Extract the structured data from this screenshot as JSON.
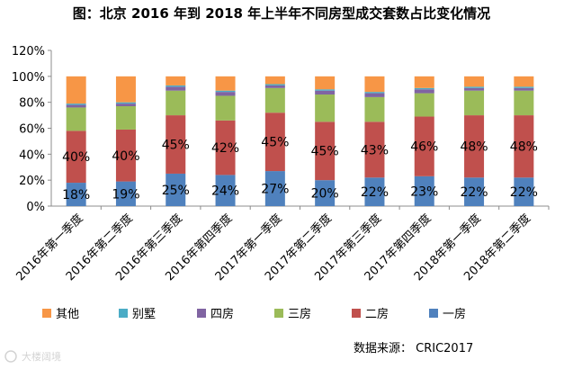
{
  "chart_data": {
    "type": "bar",
    "stacked": true,
    "title": "图：北京 2016 年到 2018 年上半年不同房型成交套数占比变化情况",
    "categories": [
      "2016年第一季度",
      "2016年第二季度",
      "2016年第三季度",
      "2016年第四季度",
      "2017年第一季度",
      "2017年第二季度",
      "2017年第三季度",
      "2017年第四季度",
      "2018年第一季度",
      "2018年第二季度"
    ],
    "ylim": [
      0,
      120
    ],
    "yticks": [
      "0%",
      "20%",
      "40%",
      "60%",
      "80%",
      "100%",
      "120%"
    ],
    "grid": false,
    "legend_position": "bottom",
    "series": [
      {
        "name": "一房",
        "color": "#4f81bd",
        "values": [
          18,
          19,
          25,
          24,
          27,
          20,
          22,
          23,
          22,
          22
        ],
        "labels": [
          "18%",
          "19%",
          "25%",
          "24%",
          "27%",
          "20%",
          "22%",
          "23%",
          "22%",
          "22%"
        ]
      },
      {
        "name": "二房",
        "color": "#c0504d",
        "values": [
          40,
          40,
          45,
          42,
          45,
          45,
          43,
          46,
          48,
          48
        ],
        "labels": [
          "40%",
          "40%",
          "45%",
          "42%",
          "45%",
          "45%",
          "43%",
          "46%",
          "48%",
          "48%"
        ]
      },
      {
        "name": "三房",
        "color": "#9bbb59",
        "values": [
          18,
          18,
          19,
          19,
          19,
          21,
          19,
          18,
          19,
          19
        ]
      },
      {
        "name": "四房",
        "color": "#8064a2",
        "values": [
          2,
          2,
          3,
          3,
          2,
          3,
          3,
          3,
          2,
          2
        ]
      },
      {
        "name": "别墅",
        "color": "#4bacc6",
        "values": [
          1,
          1,
          1,
          1,
          1,
          1,
          1,
          1,
          1,
          1
        ]
      },
      {
        "name": "其他",
        "color": "#f79646",
        "values": [
          21,
          20,
          7,
          11,
          6,
          10,
          12,
          9,
          8,
          8
        ]
      }
    ]
  },
  "legend_order": [
    "其他",
    "别墅",
    "四房",
    "三房",
    "二房",
    "一房"
  ],
  "source_text": "数据来源： CRIC2017",
  "watermark_text": "大楼阔境"
}
